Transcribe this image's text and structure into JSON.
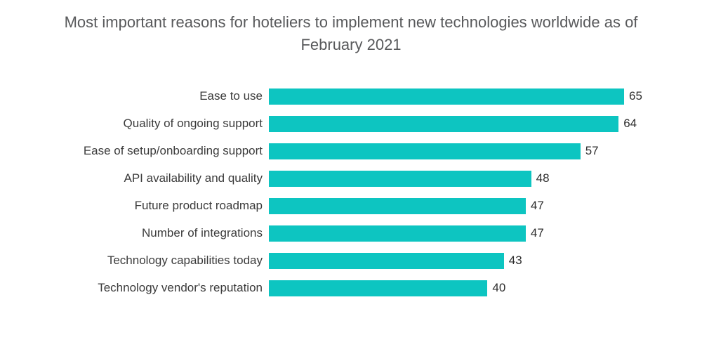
{
  "chart_data": {
    "type": "bar",
    "orientation": "horizontal",
    "title": "Most important reasons for hoteliers to implement new technologies worldwide as of February 2021",
    "categories": [
      "Ease to use",
      "Quality of ongoing support",
      "Ease of setup/onboarding support",
      "API availability and quality",
      "Future product roadmap",
      "Number of integrations",
      "Technology capabilities today",
      "Technology vendor's reputation"
    ],
    "values": [
      65,
      64,
      57,
      48,
      47,
      47,
      43,
      40
    ],
    "xlabel": "",
    "ylabel": "",
    "xlim": [
      0,
      65
    ],
    "grid": false,
    "legend": null,
    "data_labels": true,
    "colors": {
      "bar": "#0dc5c1",
      "title": "#58595b",
      "category_label": "#3b3b3b",
      "value_label": "#2e2e2e"
    }
  }
}
